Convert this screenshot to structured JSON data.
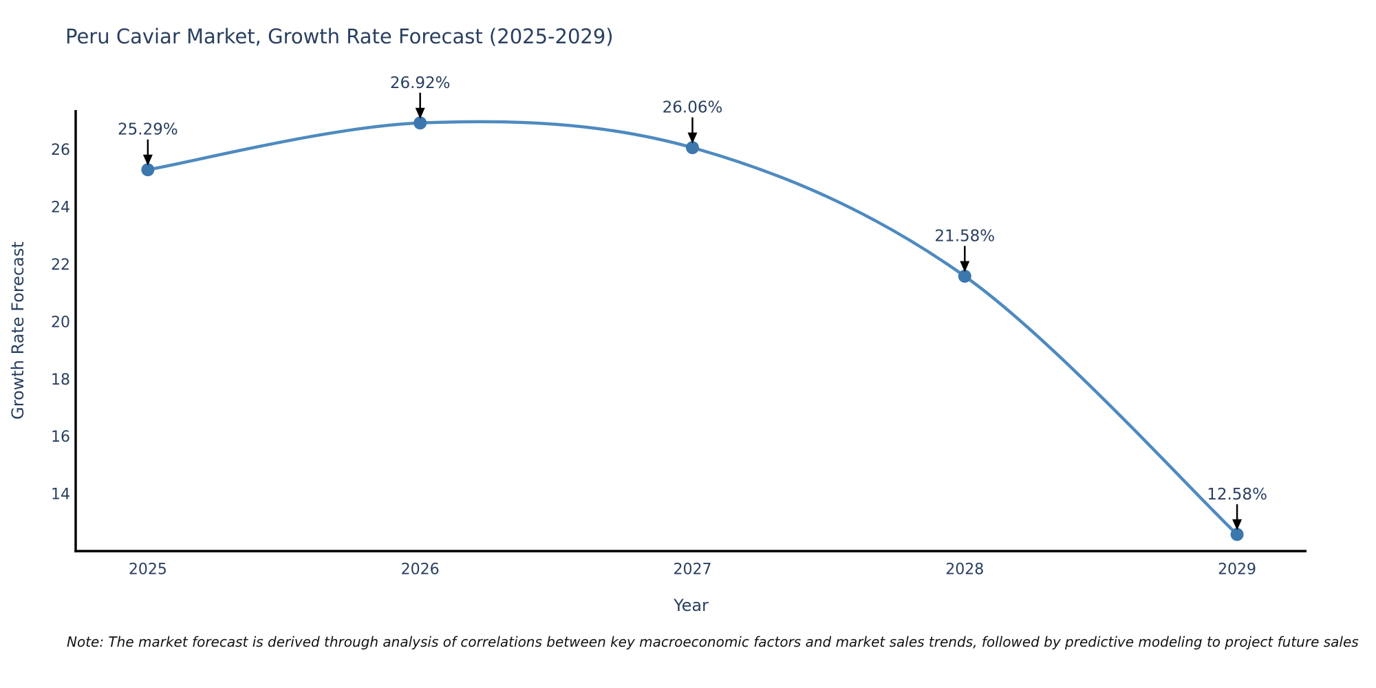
{
  "page": {
    "background": "#ffffff"
  },
  "title": "Peru Caviar Market, Growth Rate Forecast (2025-2029)",
  "note": "Note: The market forecast is derived through analysis of correlations between key macroeconomic factors and market sales trends, followed by predictive modeling to project future sales",
  "chart_data": {
    "type": "line",
    "title": "Peru Caviar Market, Growth Rate Forecast (2025-2029)",
    "xlabel": "Year",
    "ylabel": "Growth Rate Forecast",
    "x": [
      2025,
      2026,
      2027,
      2028,
      2029
    ],
    "series": [
      {
        "name": "Growth Rate Forecast",
        "values": [
          25.29,
          26.92,
          26.06,
          21.58,
          12.58
        ]
      }
    ],
    "point_labels": [
      "25.29%",
      "26.92%",
      "26.06%",
      "21.58%",
      "12.58%"
    ],
    "xticks": [
      "2025",
      "2026",
      "2027",
      "2028",
      "2029"
    ],
    "yticks": [
      14,
      16,
      18,
      20,
      22,
      24,
      26
    ],
    "xlim": [
      2024.735,
      2029.255
    ],
    "ylim": [
      12.0,
      27.37
    ],
    "grid": false,
    "legend": "none",
    "line_shape": "spline",
    "colors": {
      "line": "#4e8abf",
      "marker": "#3c77ad",
      "axis": "#000000",
      "arrow": "#000000",
      "text": "#2a3f5f",
      "note_text": "#111111"
    }
  }
}
